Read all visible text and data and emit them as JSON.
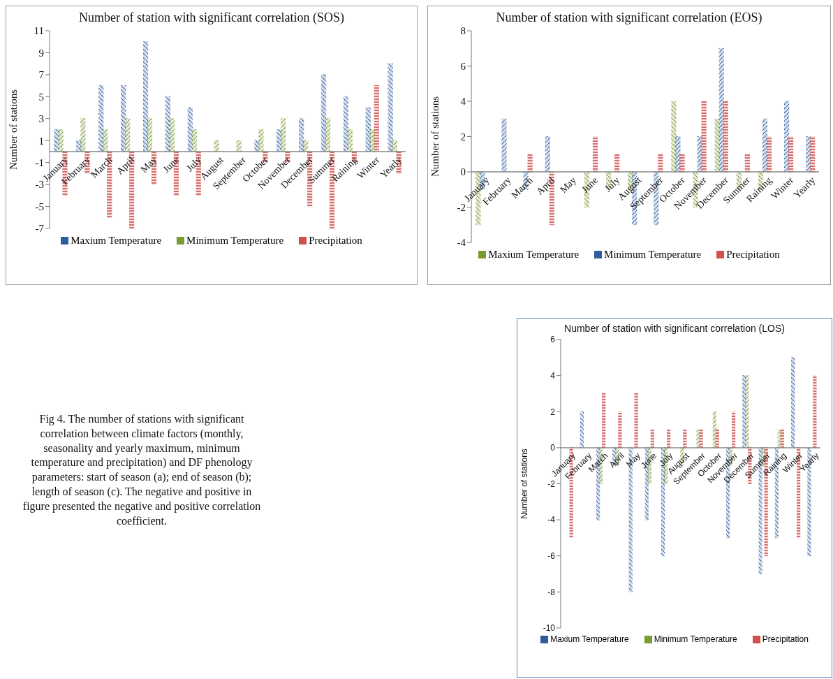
{
  "chart_data": [
    {
      "type": "bar",
      "title": "Number of station with significant correlation (SOS)",
      "ylabel": "Number of stations",
      "categories": [
        "January",
        "February",
        "March",
        "April",
        "May",
        "June",
        "July",
        "August",
        "September",
        "October",
        "November",
        "December",
        "Summer",
        "Raining",
        "Winter",
        "Yearly"
      ],
      "series": [
        {
          "name": "Maxium Temperature",
          "color": "#2e5c9e",
          "values": [
            2,
            1,
            6,
            6,
            10,
            5,
            4,
            0,
            0,
            1,
            2,
            3,
            7,
            5,
            4,
            8
          ]
        },
        {
          "name": "Minimum Temperature",
          "color": "#7a9a32",
          "values": [
            2,
            3,
            2,
            3,
            3,
            3,
            2,
            1,
            1,
            2,
            3,
            1,
            3,
            2,
            2,
            1
          ]
        },
        {
          "name": "Precipitation",
          "color": "#d0504d",
          "values": [
            -4,
            -2,
            -6,
            -7,
            -3,
            -4,
            -4,
            0,
            0,
            -1,
            -1,
            -5,
            -7,
            -1,
            6,
            -2
          ]
        }
      ],
      "ylim": [
        -7,
        11
      ],
      "yticks": [
        -7,
        -5,
        -3,
        -1,
        1,
        3,
        5,
        7,
        9,
        11
      ],
      "legend": "bottom"
    },
    {
      "type": "bar",
      "title": "Number of station with significant correlation (EOS)",
      "ylabel": "Number of stations",
      "categories": [
        "January",
        "February",
        "March",
        "April",
        "May",
        "June",
        "July",
        "August",
        "September",
        "October",
        "November",
        "December",
        "Summer",
        "Raining",
        "Winter",
        "Yearly"
      ],
      "series": [
        {
          "name": "Maxium Temperature",
          "color": "#7a9a32",
          "values": [
            -3,
            0,
            0,
            0,
            0,
            -2,
            -1,
            -1,
            0,
            4,
            -2,
            3,
            -1,
            -1,
            0,
            0
          ]
        },
        {
          "name": "Minimum Temperature",
          "color": "#2e5c9e",
          "values": [
            -1,
            3,
            -1,
            2,
            0,
            0,
            0,
            -3,
            -3,
            2,
            2,
            7,
            0,
            3,
            4,
            2
          ]
        },
        {
          "name": "Precipitation",
          "color": "#d0504d",
          "values": [
            0,
            0,
            1,
            -3,
            0,
            2,
            1,
            0,
            1,
            1,
            4,
            4,
            1,
            2,
            2,
            2
          ]
        }
      ],
      "ylim": [
        -4,
        8
      ],
      "yticks": [
        -4,
        -2,
        0,
        2,
        4,
        6,
        8
      ],
      "legend": "bottom"
    },
    {
      "type": "bar",
      "title": "Number of station with significant correlation (LOS)",
      "ylabel": "Number of stations",
      "categories": [
        "January",
        "February",
        "March",
        "April",
        "May",
        "June",
        "July",
        "August",
        "September",
        "October",
        "November",
        "December",
        "Summer",
        "Raining",
        "Winter",
        "Yearly"
      ],
      "series": [
        {
          "name": "Maxium Temperature",
          "color": "#2e5c9e",
          "values": [
            0,
            2,
            -4,
            -1,
            -8,
            -4,
            -6,
            0,
            0,
            0,
            -5,
            4,
            -7,
            -5,
            5,
            -6
          ]
        },
        {
          "name": "Minimum Temperature",
          "color": "#7a9a32",
          "values": [
            0,
            0,
            -2,
            -1,
            0,
            -2,
            -2,
            -1,
            1,
            2,
            -1,
            4,
            -1,
            1,
            0,
            0
          ]
        },
        {
          "name": "Precipitation",
          "color": "#d0504d",
          "values": [
            -5,
            0,
            3,
            2,
            3,
            1,
            1,
            1,
            1,
            1,
            2,
            -2,
            -6,
            1,
            -5,
            4
          ]
        }
      ],
      "ylim": [
        -10,
        6
      ],
      "yticks": [
        -10,
        -8,
        -6,
        -4,
        -2,
        0,
        2,
        4,
        6
      ],
      "legend": "bottom"
    },
    {
      "type": "other",
      "annotations": [
        "Fig 4. The number of stations with significant correlation between climate factors (monthly, seasonality and yearly maximum, minimum temperature and precipitation) and DF phenology parameters: start of season (a); end of season (b); length of season (c). The negative and positive in figure presented the negative and positive correlation coefficient."
      ]
    }
  ]
}
